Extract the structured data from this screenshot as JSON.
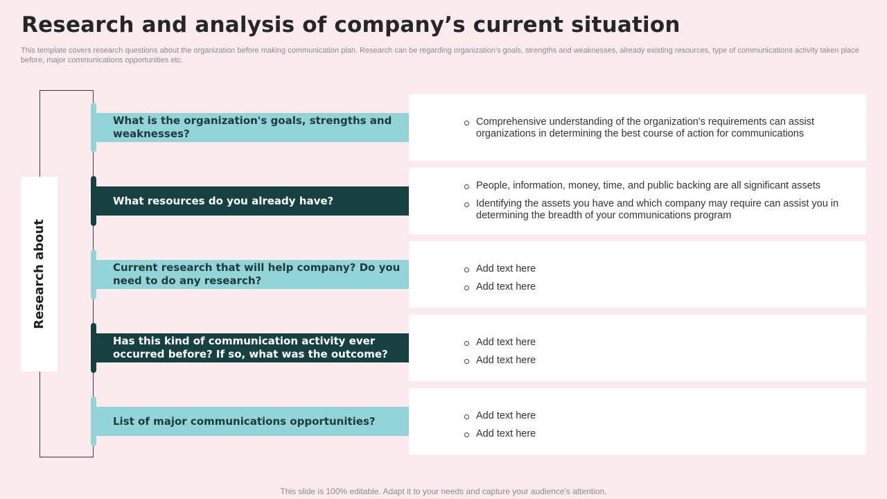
{
  "title": "Research and analysis of company’s current situation",
  "subtitle": "This template covers research questions about the organization before making communication plan. Research can be regarding organization’s goals, strengths and weaknesses, already existing resources, type of communications activity taken place before, major communications opportunities etc.",
  "side_label": "Research about",
  "colors": {
    "light": "#92d4d8",
    "dark": "#174040",
    "background": "#fcebee"
  },
  "rows": [
    {
      "question": "What is the organization's goals, strengths and weaknesses?",
      "style": "light",
      "bullets": [
        "Comprehensive understanding of the organization's requirements can assist organizations in determining the best course of action for communications"
      ]
    },
    {
      "question": "What resources do you already have?",
      "style": "dark",
      "bullets": [
        "People, information, money, time, and public backing are all significant assets",
        "Identifying the assets you have and which company may require can assist you in determining the breadth of your communications program"
      ]
    },
    {
      "question": "Current research that will help company? Do you need to do any research?",
      "style": "light",
      "bullets": [
        "Add text here",
        "Add text here"
      ]
    },
    {
      "question": "Has this kind of communication activity ever occurred before? If so, what was the outcome?",
      "style": "dark",
      "bullets": [
        "Add text here",
        "Add text here"
      ]
    },
    {
      "question": "List of major communications opportunities?",
      "style": "light",
      "bullets": [
        "Add text here",
        "Add text here"
      ]
    }
  ],
  "footer": "This slide is 100% editable. Adapt it to your needs and capture your audience's attention."
}
